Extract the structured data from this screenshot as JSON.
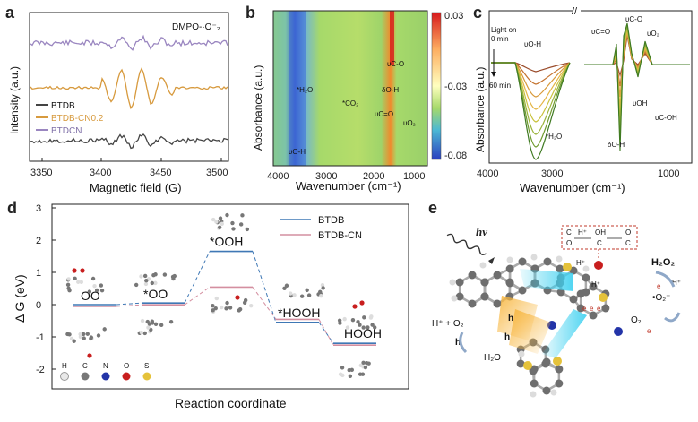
{
  "panel_letters": [
    "a",
    "b",
    "c",
    "d",
    "e"
  ],
  "chart_data": [
    {
      "panel": "a",
      "type": "line",
      "xlabel": "Magnetic field (G)",
      "ylabel": "Intensity (a.u.)",
      "xlim": [
        3340,
        3500
      ],
      "xticks": [
        "3350",
        "3400",
        "3450",
        "3500"
      ],
      "annotation": "DMPO-·O⁻₂",
      "legend": [
        "BTDB",
        "BTDB-CN0.2",
        "BTDCN"
      ],
      "series": [
        {
          "name": "BTDB",
          "color": "#444444"
        },
        {
          "name": "BTDB-CN0.2",
          "color": "#d79a3e"
        },
        {
          "name": "BTDCN",
          "color": "#9a86c0"
        }
      ]
    },
    {
      "panel": "b",
      "type": "heatmap",
      "xlabel": "Wavenumber (cm⁻¹)",
      "ylabel": "Absorbance (a.u.)",
      "xlim": [
        4000,
        800
      ],
      "xticks": [
        "4000",
        "3000",
        "2000",
        "1000"
      ],
      "colorbar": [
        "0.03",
        "-0.03",
        "-0.08"
      ],
      "annotations": [
        "*H₂O",
        "*CO₂",
        "υC=O",
        "δO-H",
        "υC-O",
        "υO₂",
        "υO-H"
      ]
    },
    {
      "panel": "c",
      "type": "line",
      "xlabel": "Wavenumber (cm⁻¹)",
      "ylabel": "Absorbance (a.u.)",
      "xticks": [
        "4000",
        "3000",
        "1000"
      ],
      "annotations": [
        "Light on",
        "0 min",
        "60 min",
        "υO-H",
        "*H₂O",
        "υC=O",
        "υC-O",
        "υO₂",
        "δO-H",
        "υOH",
        "υC-OH"
      ]
    },
    {
      "panel": "d",
      "type": "line",
      "xlabel": "Reaction coordinate",
      "ylabel": "Δ G (eV)",
      "ylim": [
        -2.3,
        3.1
      ],
      "yticks": [
        "3",
        "2",
        "1",
        "0",
        "-1",
        "-2"
      ],
      "categories": [
        "OO",
        "*OO",
        "*OOH",
        "*HOOH",
        "HOOH"
      ],
      "series": [
        {
          "name": "BTDB",
          "color": "#3f78b5",
          "values": [
            0.0,
            0.05,
            1.65,
            -0.55,
            -1.2
          ]
        },
        {
          "name": "BTDB-CN",
          "color": "#d48fa0",
          "values": [
            0.0,
            0.05,
            0.6,
            -0.4,
            -1.2
          ]
        }
      ],
      "atom_legend": [
        "H",
        "C",
        "N",
        "O",
        "S"
      ]
    }
  ],
  "panel_e": {
    "light": "hν",
    "labels": [
      "H₂O₂",
      "H⁺",
      "•O₂⁻",
      "O₂",
      "H⁺ + O₂",
      "H₂O",
      "h",
      "h",
      "h",
      "e",
      "e",
      "e",
      "e",
      "e",
      "H⁺",
      "H⁺"
    ],
    "inset": [
      "C",
      "O",
      "H⁺",
      "OH",
      "C",
      "O",
      "C"
    ]
  }
}
